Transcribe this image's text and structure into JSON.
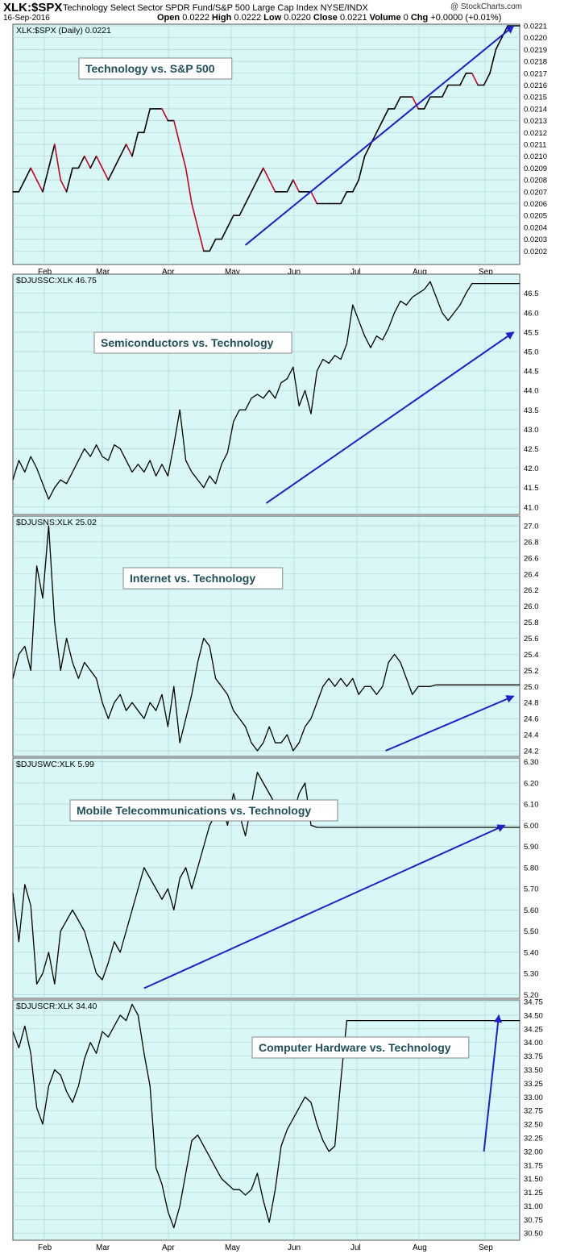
{
  "header": {
    "symbol": "XLK:$SPX",
    "description": "Technology Select Sector SPDR Fund/S&P 500 Large Cap Index  NYSE/INDX",
    "date": "16-Sep-2016",
    "logo": "@ StockCharts.com",
    "open_label": "Open",
    "open": "0.0222",
    "high_label": "High",
    "high": "0.0222",
    "low_label": "Low",
    "low": "0.0220",
    "close_label": "Close",
    "close": "0.0221",
    "volume_label": "Volume",
    "volume": "0",
    "chg_label": "Chg",
    "chg": "+0.0000 (+0.01%)"
  },
  "colors": {
    "panel_bg": "#d9f7f7",
    "grid": "#b5d6d6",
    "line": "#000000",
    "decline": "#cc0022",
    "arrow": "#1f1fcc",
    "label_text": "#1f4f5a"
  },
  "months": [
    "Feb",
    "Mar",
    "Apr",
    "May",
    "Jun",
    "Jul",
    "Aug",
    "Sep"
  ],
  "chart_data": [
    {
      "type": "line",
      "legend": "XLK:$SPX (Daily) 0.0221",
      "annotation": "Technology vs. S&P 500",
      "ylim": [
        0.0201,
        0.0221
      ],
      "yticks": [
        "0.0202",
        "0.0203",
        "0.0204",
        "0.0205",
        "0.0206",
        "0.0207",
        "0.0208",
        "0.0209",
        "0.0210",
        "0.0211",
        "0.0212",
        "0.0213",
        "0.0214",
        "0.0215",
        "0.0216",
        "0.0217",
        "0.0218",
        "0.0219",
        "0.0220",
        "0.0221"
      ],
      "color_declines": true,
      "x": [
        0,
        2,
        4,
        6,
        8,
        10,
        12,
        14,
        16,
        18,
        20,
        22,
        24,
        26,
        28,
        30,
        32,
        34,
        36,
        38,
        40,
        42,
        44,
        46,
        48,
        50,
        52,
        54,
        56,
        58,
        60,
        62,
        64,
        66,
        68,
        70,
        72,
        74,
        76,
        78,
        80,
        82,
        84,
        86,
        88,
        90,
        92,
        94,
        96,
        98,
        100,
        102,
        104,
        106,
        108,
        110,
        112,
        114,
        116,
        118,
        120,
        122,
        124,
        126,
        128,
        130,
        132,
        134,
        136,
        138,
        140,
        142,
        144,
        146,
        148,
        150,
        152,
        154,
        156,
        158,
        160,
        162,
        164,
        166,
        168,
        170
      ],
      "values": [
        0.0207,
        0.0207,
        0.0208,
        0.0209,
        0.0208,
        0.0207,
        0.0209,
        0.0211,
        0.0208,
        0.0207,
        0.0209,
        0.0209,
        0.021,
        0.0209,
        0.021,
        0.0209,
        0.0208,
        0.0209,
        0.021,
        0.0211,
        0.021,
        0.0212,
        0.0212,
        0.0214,
        0.0214,
        0.0214,
        0.0213,
        0.0213,
        0.0211,
        0.0209,
        0.0206,
        0.0204,
        0.0202,
        0.0202,
        0.0203,
        0.0203,
        0.0204,
        0.0205,
        0.0205,
        0.0206,
        0.0207,
        0.0208,
        0.0209,
        0.0208,
        0.0207,
        0.0207,
        0.0207,
        0.0208,
        0.0207,
        0.0207,
        0.0207,
        0.0206,
        0.0206,
        0.0206,
        0.0206,
        0.0206,
        0.0207,
        0.0207,
        0.0208,
        0.021,
        0.0211,
        0.0212,
        0.0213,
        0.0214,
        0.0214,
        0.0215,
        0.0215,
        0.0215,
        0.0214,
        0.0214,
        0.0215,
        0.0215,
        0.0215,
        0.0216,
        0.0216,
        0.0216,
        0.0217,
        0.0217,
        0.0216,
        0.0216,
        0.0217,
        0.0219,
        0.022,
        0.0221,
        0.0221,
        0.0221
      ],
      "arrow": {
        "from": [
          78,
          0.02025
        ],
        "to": [
          168,
          0.0221
        ]
      }
    },
    {
      "type": "line",
      "legend": "$DJUSSC:XLK 46.75",
      "annotation": "Semiconductors vs. Technology",
      "ylim": [
        40.85,
        46.95
      ],
      "yticks": [
        "41.0",
        "41.5",
        "42.0",
        "42.5",
        "43.0",
        "43.5",
        "44.0",
        "44.5",
        "45.0",
        "45.5",
        "46.0",
        "46.5"
      ],
      "color_declines": false,
      "x": [
        0,
        2,
        4,
        6,
        8,
        10,
        12,
        14,
        16,
        18,
        20,
        22,
        24,
        26,
        28,
        30,
        32,
        34,
        36,
        38,
        40,
        42,
        44,
        46,
        48,
        50,
        52,
        54,
        56,
        58,
        60,
        62,
        64,
        66,
        68,
        70,
        72,
        74,
        76,
        78,
        80,
        82,
        84,
        86,
        88,
        90,
        92,
        94,
        96,
        98,
        100,
        102,
        104,
        106,
        108,
        110,
        112,
        114,
        116,
        118,
        120,
        122,
        124,
        126,
        128,
        130,
        132,
        134,
        136,
        138,
        140,
        142,
        144,
        146,
        148,
        150,
        152,
        154,
        156,
        158,
        160,
        162,
        164,
        166,
        168,
        170
      ],
      "values": [
        41.7,
        42.2,
        41.9,
        42.3,
        42.0,
        41.6,
        41.2,
        41.5,
        41.7,
        41.6,
        41.9,
        42.2,
        42.5,
        42.3,
        42.6,
        42.3,
        42.2,
        42.6,
        42.5,
        42.2,
        41.9,
        42.1,
        41.9,
        42.2,
        41.8,
        42.1,
        41.8,
        42.6,
        43.5,
        42.2,
        41.9,
        41.7,
        41.5,
        41.8,
        41.6,
        42.1,
        42.4,
        43.2,
        43.5,
        43.5,
        43.8,
        43.9,
        43.8,
        44.0,
        43.8,
        44.2,
        44.3,
        44.6,
        43.6,
        44.0,
        43.4,
        44.5,
        44.8,
        44.7,
        44.9,
        44.8,
        45.2,
        46.2,
        45.8,
        45.4,
        45.1,
        45.4,
        45.3,
        45.6,
        46.0,
        46.3,
        46.2,
        46.4,
        46.5,
        46.6,
        46.8,
        46.4,
        46.0,
        45.8,
        46.0,
        46.2,
        46.5,
        46.75,
        46.75,
        46.75,
        46.75,
        46.75,
        46.75,
        46.75,
        46.75,
        46.75
      ],
      "arrow": {
        "from": [
          85,
          41.1
        ],
        "to": [
          168,
          45.5
        ]
      }
    },
    {
      "type": "line",
      "legend": "$DJUSNS:XLK 25.02",
      "annotation": "Internet vs. Technology",
      "ylim": [
        24.15,
        27.1
      ],
      "yticks": [
        "24.2",
        "24.4",
        "24.6",
        "24.8",
        "25.0",
        "25.2",
        "25.4",
        "25.6",
        "25.8",
        "26.0",
        "26.2",
        "26.4",
        "26.6",
        "26.8",
        "27.0"
      ],
      "color_declines": false,
      "x": [
        0,
        2,
        4,
        6,
        8,
        10,
        12,
        14,
        16,
        18,
        20,
        22,
        24,
        26,
        28,
        30,
        32,
        34,
        36,
        38,
        40,
        42,
        44,
        46,
        48,
        50,
        52,
        54,
        56,
        58,
        60,
        62,
        64,
        66,
        68,
        70,
        72,
        74,
        76,
        78,
        80,
        82,
        84,
        86,
        88,
        90,
        92,
        94,
        96,
        98,
        100,
        102,
        104,
        106,
        108,
        110,
        112,
        114,
        116,
        118,
        120,
        122,
        124,
        126,
        128,
        130,
        132,
        134,
        136,
        138,
        140,
        142,
        144,
        146,
        148,
        150,
        152,
        154,
        156,
        158,
        160,
        162,
        164,
        166,
        168,
        170
      ],
      "values": [
        25.1,
        25.4,
        25.5,
        25.2,
        26.5,
        26.1,
        27.0,
        25.8,
        25.2,
        25.6,
        25.3,
        25.1,
        25.3,
        25.2,
        25.1,
        24.8,
        24.6,
        24.8,
        24.9,
        24.7,
        24.8,
        24.7,
        24.6,
        24.8,
        24.7,
        24.9,
        24.5,
        25.0,
        24.3,
        24.6,
        24.9,
        25.3,
        25.6,
        25.5,
        25.1,
        25.0,
        24.9,
        24.7,
        24.6,
        24.5,
        24.3,
        24.2,
        24.3,
        24.5,
        24.3,
        24.3,
        24.4,
        24.2,
        24.3,
        24.5,
        24.6,
        24.8,
        25.0,
        25.1,
        25.0,
        25.1,
        25.0,
        25.1,
        24.9,
        25.0,
        25.0,
        24.9,
        25.0,
        25.3,
        25.4,
        25.3,
        25.1,
        24.9,
        25.0,
        25.0,
        25.0,
        25.02,
        25.02,
        25.02,
        25.02,
        25.02,
        25.02,
        25.02,
        25.02,
        25.02,
        25.02,
        25.02,
        25.02,
        25.02,
        25.02,
        25.02
      ],
      "arrow": {
        "from": [
          125,
          24.2
        ],
        "to": [
          168,
          24.88
        ]
      }
    },
    {
      "type": "line",
      "legend": "$DJUSWC:XLK 5.99",
      "annotation": "Mobile Telecommunications vs. Technology",
      "ylim": [
        5.19,
        6.31
      ],
      "yticks": [
        "5.20",
        "5.30",
        "5.40",
        "5.50",
        "5.60",
        "5.70",
        "5.80",
        "5.90",
        "6.00",
        "6.10",
        "6.20",
        "6.30"
      ],
      "color_declines": false,
      "x": [
        0,
        2,
        4,
        6,
        8,
        10,
        12,
        14,
        16,
        18,
        20,
        22,
        24,
        26,
        28,
        30,
        32,
        34,
        36,
        38,
        40,
        42,
        44,
        46,
        48,
        50,
        52,
        54,
        56,
        58,
        60,
        62,
        64,
        66,
        68,
        70,
        72,
        74,
        76,
        78,
        80,
        82,
        84,
        86,
        88,
        90,
        92,
        94,
        96,
        98,
        100,
        102,
        104,
        106,
        108,
        110,
        112,
        114,
        116,
        118,
        120,
        122,
        124,
        126,
        128,
        130,
        132,
        134,
        136,
        138,
        140,
        142,
        144,
        146,
        148,
        150,
        152,
        154,
        156,
        158,
        160,
        162,
        164,
        166,
        168,
        170
      ],
      "values": [
        5.68,
        5.45,
        5.72,
        5.62,
        5.25,
        5.3,
        5.4,
        5.25,
        5.5,
        5.55,
        5.6,
        5.55,
        5.5,
        5.4,
        5.3,
        5.27,
        5.35,
        5.45,
        5.4,
        5.5,
        5.6,
        5.7,
        5.8,
        5.75,
        5.7,
        5.65,
        5.7,
        5.6,
        5.75,
        5.8,
        5.7,
        5.8,
        5.9,
        6.0,
        6.05,
        6.1,
        6.0,
        6.15,
        6.05,
        5.95,
        6.1,
        6.25,
        6.2,
        6.15,
        6.1,
        6.05,
        6.1,
        6.05,
        6.15,
        6.2,
        6.0,
        5.99,
        5.99,
        5.99,
        5.99,
        5.99,
        5.99,
        5.99,
        5.99,
        5.99,
        5.99,
        5.99,
        5.99,
        5.99,
        5.99,
        5.99,
        5.99,
        5.99,
        5.99,
        5.99,
        5.99,
        5.99,
        5.99,
        5.99,
        5.99,
        5.99,
        5.99,
        5.99,
        5.99,
        5.99,
        5.99,
        5.99,
        5.99,
        5.99,
        5.99,
        5.99
      ],
      "arrow": {
        "from": [
          44,
          5.23
        ],
        "to": [
          165,
          6.0
        ]
      }
    },
    {
      "type": "line",
      "legend": "$DJUSCR:XLK 34.40",
      "annotation": "Computer Hardware vs. Technology",
      "ylim": [
        30.4,
        34.75
      ],
      "yticks": [
        "30.50",
        "30.75",
        "31.00",
        "31.25",
        "31.50",
        "31.75",
        "32.00",
        "32.25",
        "32.50",
        "32.75",
        "33.00",
        "33.25",
        "33.50",
        "33.75",
        "34.00",
        "34.25",
        "34.50",
        "34.75"
      ],
      "color_declines": false,
      "x": [
        0,
        2,
        4,
        6,
        8,
        10,
        12,
        14,
        16,
        18,
        20,
        22,
        24,
        26,
        28,
        30,
        32,
        34,
        36,
        38,
        40,
        42,
        44,
        46,
        48,
        50,
        52,
        54,
        56,
        58,
        60,
        62,
        64,
        66,
        68,
        70,
        72,
        74,
        76,
        78,
        80,
        82,
        84,
        86,
        88,
        90,
        92,
        94,
        96,
        98,
        100,
        102,
        104,
        106,
        108,
        110,
        112,
        114,
        116,
        118,
        120,
        122,
        124,
        126,
        128,
        130,
        132,
        134,
        136,
        138,
        140,
        142,
        144,
        146,
        148,
        150,
        152,
        154,
        156,
        158,
        160,
        162,
        164,
        166,
        168,
        170
      ],
      "values": [
        34.2,
        33.9,
        34.3,
        33.8,
        32.8,
        32.5,
        33.2,
        33.5,
        33.4,
        33.1,
        32.9,
        33.2,
        33.7,
        34.0,
        33.8,
        34.2,
        34.1,
        34.3,
        34.5,
        34.4,
        34.7,
        34.5,
        33.8,
        33.2,
        31.7,
        31.4,
        30.9,
        30.6,
        31.0,
        31.6,
        32.2,
        32.3,
        32.1,
        31.9,
        31.7,
        31.5,
        31.4,
        31.3,
        31.3,
        31.2,
        31.3,
        31.6,
        31.1,
        30.7,
        31.3,
        32.1,
        32.4,
        32.6,
        32.8,
        33.0,
        32.9,
        32.5,
        32.2,
        32.0,
        32.1,
        33.3,
        34.4,
        34.4,
        34.4,
        34.4,
        34.4,
        34.4,
        34.4,
        34.4,
        34.4,
        34.4,
        34.4,
        34.4,
        34.4,
        34.4,
        34.4,
        34.4,
        34.4,
        34.4,
        34.4,
        34.4,
        34.4,
        34.4,
        34.4,
        34.4,
        34.4,
        34.4,
        34.4,
        34.4,
        34.4,
        34.4
      ],
      "arrow": {
        "from": [
          158,
          32.0
        ],
        "to": [
          163,
          34.5
        ]
      }
    }
  ]
}
